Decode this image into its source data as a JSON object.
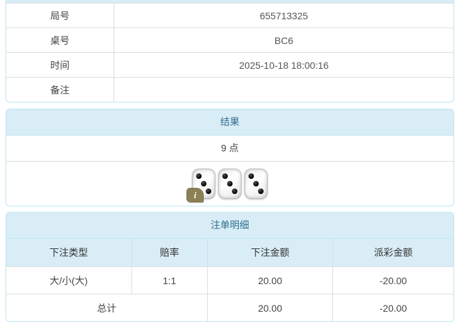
{
  "colors": {
    "panel_border": "#bce8f1",
    "heading_bg": "#d9edf7",
    "heading_text": "#31708f",
    "row_border": "#dddddd",
    "negative_text": "#ed3b3b"
  },
  "info_table": {
    "rows": [
      {
        "label": "局号",
        "value": "655713325"
      },
      {
        "label": "桌号",
        "value": "BC6"
      },
      {
        "label": "时间",
        "value": "2025-10-18 18:00:16"
      },
      {
        "label": "备注",
        "value": ""
      }
    ]
  },
  "result_panel": {
    "title": "结果",
    "points": "9 点",
    "dice": [
      3,
      3,
      3
    ],
    "info_badge_label": "i"
  },
  "bet_panel": {
    "title": "注单明细",
    "columns": [
      "下注类型",
      "赔率",
      "下注金额",
      "派彩金额"
    ],
    "rows": [
      {
        "type": "大/小(大)",
        "odds": "1:1",
        "amount": "20.00",
        "payout": "-20.00"
      }
    ],
    "total": {
      "label": "总计",
      "amount": "20.00",
      "payout": "-20.00"
    }
  }
}
